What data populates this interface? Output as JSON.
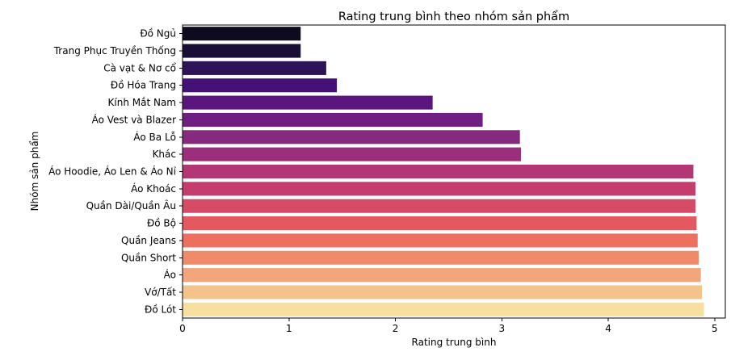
{
  "chart_data": {
    "type": "bar",
    "orientation": "horizontal",
    "title": "Rating trung bình theo nhóm sản phẩm",
    "xlabel": "Rating trung bình",
    "ylabel": "Nhóm sản phẩm",
    "xlim": [
      0,
      5.1
    ],
    "xticks": [
      "0",
      "1",
      "2",
      "3",
      "4",
      "5"
    ],
    "grid": false,
    "colormap": "magma",
    "categories": [
      "Đồ Ngủ",
      "Trang Phục Truyền Thống",
      "Cà vạt & Nơ cổ",
      "Đồ Hóa Trang",
      "Kính Mắt Nam",
      "Áo Vest và Blazer",
      "Áo Ba Lỗ",
      "Khác",
      "Áo Hoodie, Áo Len & Áo Nỉ",
      "Áo Khoác",
      "Quần Dài/Quần Âu",
      "Đồ Bộ",
      "Quần Jeans",
      "Quần Short",
      "Áo",
      "Vớ/Tất",
      "Đồ Lót"
    ],
    "values": [
      1.11,
      1.11,
      1.35,
      1.45,
      2.35,
      2.82,
      3.17,
      3.18,
      4.8,
      4.82,
      4.82,
      4.83,
      4.84,
      4.85,
      4.87,
      4.88,
      4.9
    ],
    "colors": [
      "#0e0a1f",
      "#190f36",
      "#2e1358",
      "#451178",
      "#5a167e",
      "#6e1f81",
      "#852a7f",
      "#9b2f7b",
      "#b33775",
      "#c53d6e",
      "#d64c66",
      "#e3595f",
      "#ec6f60",
      "#f08b6a",
      "#f3a67b",
      "#f4c38c",
      "#f6df9f"
    ]
  }
}
